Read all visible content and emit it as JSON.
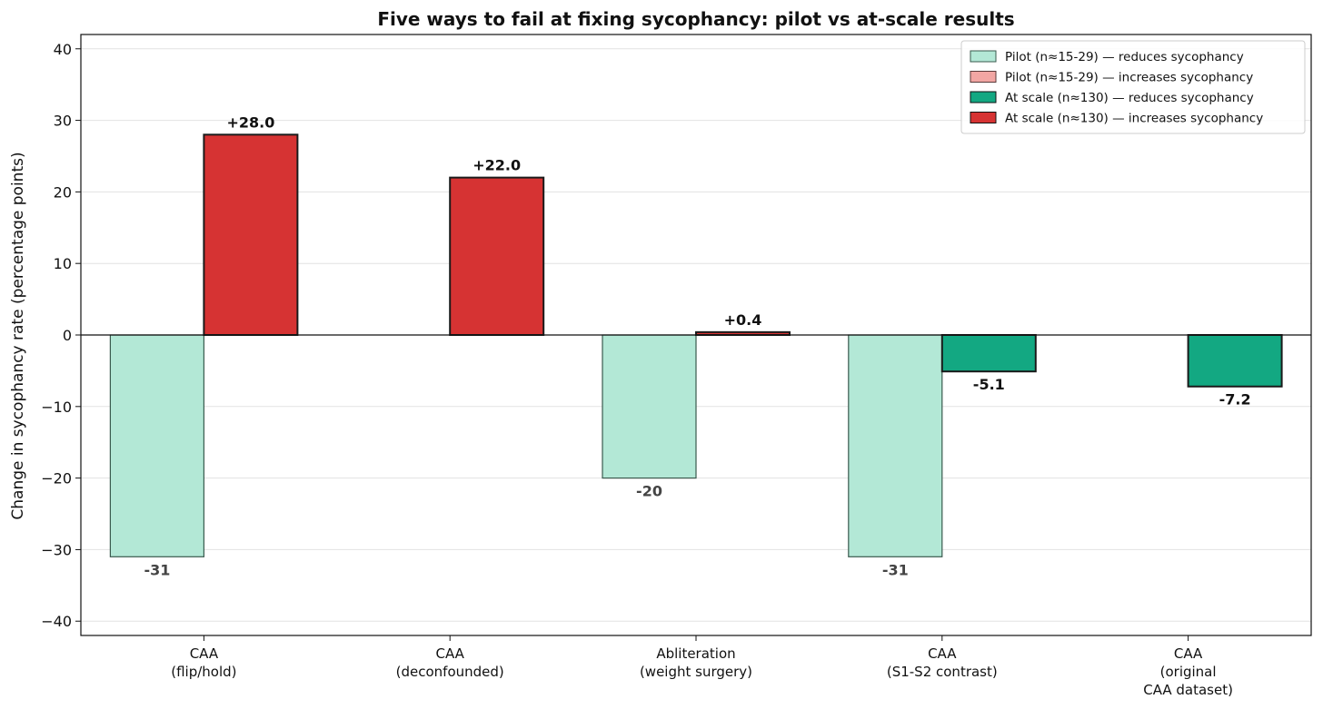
{
  "chart_data": {
    "type": "bar",
    "title": "Five ways to fail at fixing sycophancy: pilot vs at-scale results",
    "xlabel": "",
    "ylabel": "Change in sycophancy rate (percentage points)",
    "ylim": [
      -42,
      42
    ],
    "yticks": [
      -40,
      -30,
      -20,
      -10,
      0,
      10,
      20,
      30,
      40
    ],
    "ytick_labels": [
      "−40",
      "−30",
      "−20",
      "−10",
      "0",
      "10",
      "20",
      "30",
      "40"
    ],
    "grid": "horizontal",
    "legend_position": "top-right",
    "categories": [
      [
        "CAA",
        "(flip/hold)"
      ],
      [
        "CAA",
        "(deconfounded)"
      ],
      [
        "Abliteration",
        "(weight surgery)"
      ],
      [
        "CAA",
        "(S1-S2 contrast)"
      ],
      [
        "CAA",
        "(original",
        "CAA dataset)"
      ]
    ],
    "series": [
      {
        "name": "Pilot",
        "values": [
          -31,
          null,
          -20,
          -31,
          null
        ],
        "labels": [
          "-31",
          "",
          "-20",
          "-31",
          ""
        ]
      },
      {
        "name": "At scale",
        "values": [
          28.0,
          22.0,
          0.4,
          -5.1,
          -7.2
        ],
        "labels": [
          "+28.0",
          "+22.0",
          "+0.4",
          "-5.1",
          "-7.2"
        ]
      }
    ],
    "legend": [
      {
        "label": "Pilot (n≈15-29) — reduces sycophancy",
        "color": "#b3e8d6",
        "edge": "#3a5a4e"
      },
      {
        "label": "Pilot (n≈15-29) — increases sycophancy",
        "color": "#f2a6a3",
        "edge": "#5a3a3a"
      },
      {
        "label": "At scale (n≈130) — reduces sycophancy",
        "color": "#13a882",
        "edge": "#111111"
      },
      {
        "label": "At scale (n≈130) — increases sycophancy",
        "color": "#d63333",
        "edge": "#111111"
      }
    ],
    "colors": {
      "pilot_reduce": "#b3e8d6",
      "pilot_increase": "#f2a6a3",
      "scale_reduce": "#13a882",
      "scale_increase": "#d63333",
      "pilot_edge": "#3a5a4e",
      "scale_edge": "#1a1a1a",
      "pilot_label": "#444444",
      "scale_label": "#111111"
    }
  }
}
